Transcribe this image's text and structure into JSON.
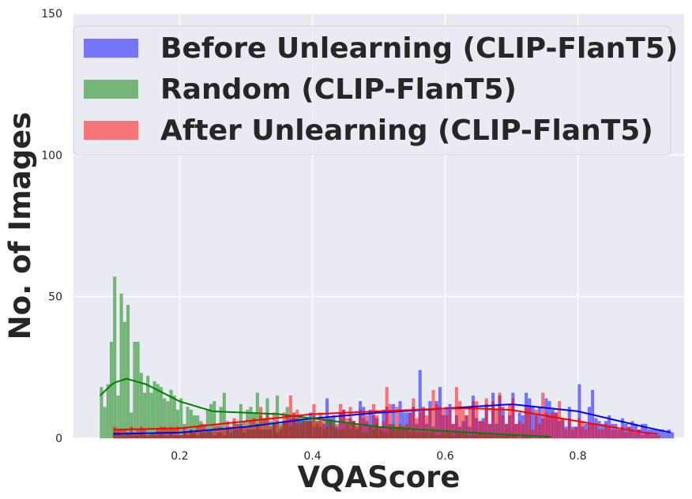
{
  "chart_data": {
    "type": "bar",
    "subtype": "overlaid histogram with KDE curves",
    "xlabel": "VQAScore",
    "ylabel": "No. of Images",
    "xlim": [
      0.04,
      0.96
    ],
    "ylim": [
      0,
      150
    ],
    "x_ticks": [
      "0.2",
      "0.4",
      "0.6",
      "0.8"
    ],
    "x_tick_values": [
      0.2,
      0.4,
      0.6,
      0.8
    ],
    "y_ticks": [
      "0",
      "50",
      "100",
      "150"
    ],
    "y_tick_values": [
      0,
      50,
      100,
      150
    ],
    "grid": true,
    "background": "#eaeaf2",
    "legend_position": "top-left",
    "bin_width": 0.005,
    "series": [
      {
        "name": "Before Unlearning (CLIP-FlanT5)",
        "color": "#0000ff",
        "range": [
          0.1,
          0.94
        ],
        "kde": [
          [
            0.1,
            1.5
          ],
          [
            0.2,
            2
          ],
          [
            0.3,
            4
          ],
          [
            0.4,
            7
          ],
          [
            0.5,
            9
          ],
          [
            0.6,
            10.5
          ],
          [
            0.7,
            12
          ],
          [
            0.8,
            9.5
          ],
          [
            0.9,
            4
          ],
          [
            0.94,
            2
          ]
        ],
        "peaks": [
          [
            0.56,
            24
          ],
          [
            0.59,
            18
          ],
          [
            0.7,
            16
          ],
          [
            0.72,
            16
          ],
          [
            0.8,
            19
          ],
          [
            0.82,
            17
          ],
          [
            0.53,
            13
          ],
          [
            0.64,
            15
          ],
          [
            0.67,
            16
          ],
          [
            0.75,
            14
          ],
          [
            0.42,
            14
          ],
          [
            0.47,
            13
          ]
        ]
      },
      {
        "name": "Random (CLIP-FlanT5)",
        "color": "#008000",
        "range": [
          0.08,
          0.76
        ],
        "kde": [
          [
            0.08,
            15
          ],
          [
            0.1,
            19.5
          ],
          [
            0.12,
            21
          ],
          [
            0.15,
            19
          ],
          [
            0.2,
            13
          ],
          [
            0.25,
            9.5
          ],
          [
            0.3,
            9
          ],
          [
            0.35,
            8.5
          ],
          [
            0.4,
            7
          ],
          [
            0.5,
            4
          ],
          [
            0.6,
            2.5
          ],
          [
            0.7,
            1.2
          ],
          [
            0.76,
            0.5
          ]
        ],
        "peaks": [
          [
            0.1,
            57
          ],
          [
            0.11,
            51
          ],
          [
            0.12,
            47
          ],
          [
            0.115,
            41
          ],
          [
            0.13,
            34
          ],
          [
            0.135,
            34
          ],
          [
            0.095,
            34
          ],
          [
            0.09,
            19
          ],
          [
            0.14,
            23
          ],
          [
            0.15,
            22
          ],
          [
            0.16,
            20
          ],
          [
            0.17,
            18
          ],
          [
            0.18,
            13
          ],
          [
            0.2,
            14
          ],
          [
            0.185,
            17
          ],
          [
            0.265,
            16
          ],
          [
            0.315,
            16
          ],
          [
            0.345,
            15
          ],
          [
            0.33,
            14
          ],
          [
            0.25,
            13
          ],
          [
            0.29,
            12
          ],
          [
            0.36,
            11
          ],
          [
            0.21,
            11
          ],
          [
            0.24,
            10
          ]
        ]
      },
      {
        "name": "After Unlearning (CLIP-FlanT5)",
        "color": "#ff0000",
        "range": [
          0.1,
          0.92
        ],
        "kde": [
          [
            0.1,
            3
          ],
          [
            0.2,
            3.5
          ],
          [
            0.3,
            6
          ],
          [
            0.4,
            8.5
          ],
          [
            0.5,
            9.5
          ],
          [
            0.6,
            10.5
          ],
          [
            0.65,
            10.5
          ],
          [
            0.7,
            10
          ],
          [
            0.8,
            6
          ],
          [
            0.9,
            2
          ],
          [
            0.92,
            1.5
          ]
        ],
        "peaks": [
          [
            0.51,
            18
          ],
          [
            0.615,
            18
          ],
          [
            0.58,
            17
          ],
          [
            0.365,
            15
          ],
          [
            0.68,
            16
          ],
          [
            0.745,
            16
          ],
          [
            0.4,
            12
          ],
          [
            0.44,
            12
          ],
          [
            0.49,
            12
          ],
          [
            0.55,
            14
          ],
          [
            0.66,
            14
          ],
          [
            0.7,
            14
          ],
          [
            0.32,
            11
          ],
          [
            0.77,
            13
          ]
        ]
      }
    ]
  }
}
